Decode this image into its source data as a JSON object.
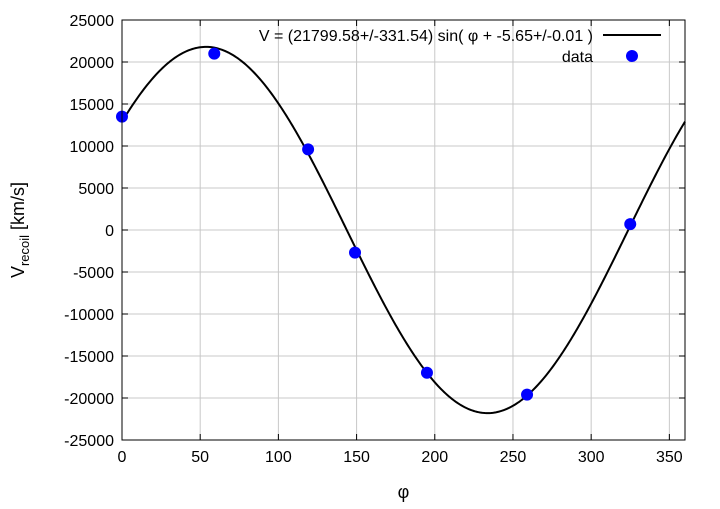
{
  "chart_data": {
    "type": "scatter",
    "xlabel": "φ",
    "ylabel_main": "V",
    "ylabel_sub": "recoil",
    "ylabel_unit": " [km/s]",
    "xlim": [
      0,
      360
    ],
    "ylim": [
      -25000,
      25000
    ],
    "x_ticks": [
      0,
      50,
      100,
      150,
      200,
      250,
      300,
      350
    ],
    "y_ticks": [
      -25000,
      -20000,
      -15000,
      -10000,
      -5000,
      0,
      5000,
      10000,
      15000,
      20000,
      25000
    ],
    "grid": true,
    "legend_position": "top-right",
    "colors": {
      "fit": "#000000",
      "data": "#0000ff",
      "grid": "#c8c8c8"
    },
    "series": [
      {
        "name": "V = (21799.58+/-331.54) sin( φ + -5.65+/-0.01 )",
        "kind": "line",
        "function": {
          "amplitude": 21799.58,
          "phase_rad": -5.65
        }
      },
      {
        "name": "data",
        "kind": "points",
        "x": [
          0,
          59,
          119,
          149,
          195,
          259,
          325
        ],
        "y": [
          13500,
          21000,
          9600,
          -2700,
          -17000,
          -19600,
          700
        ]
      }
    ]
  }
}
